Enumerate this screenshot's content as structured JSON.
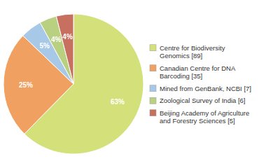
{
  "chart_data": {
    "type": "pie",
    "categories": [
      "Centre for Biodiversity\nGenomics [89]",
      "Canadian Centre for DNA\nBarcoding [35]",
      "Mined from GenBank, NCBI [7]",
      "Zoological Survey of India [6]",
      "Beijing Academy of Agriculture\nand Forestry Sciences [5]"
    ],
    "values": [
      63,
      25,
      5,
      4,
      4
    ],
    "value_labels": [
      "63%",
      "25%",
      "5%",
      "4%",
      "4%"
    ],
    "colors": [
      "#d4e17a",
      "#f0a060",
      "#a8c8e8",
      "#b8d080",
      "#c87060"
    ],
    "data_labels": true,
    "legend": "right"
  }
}
